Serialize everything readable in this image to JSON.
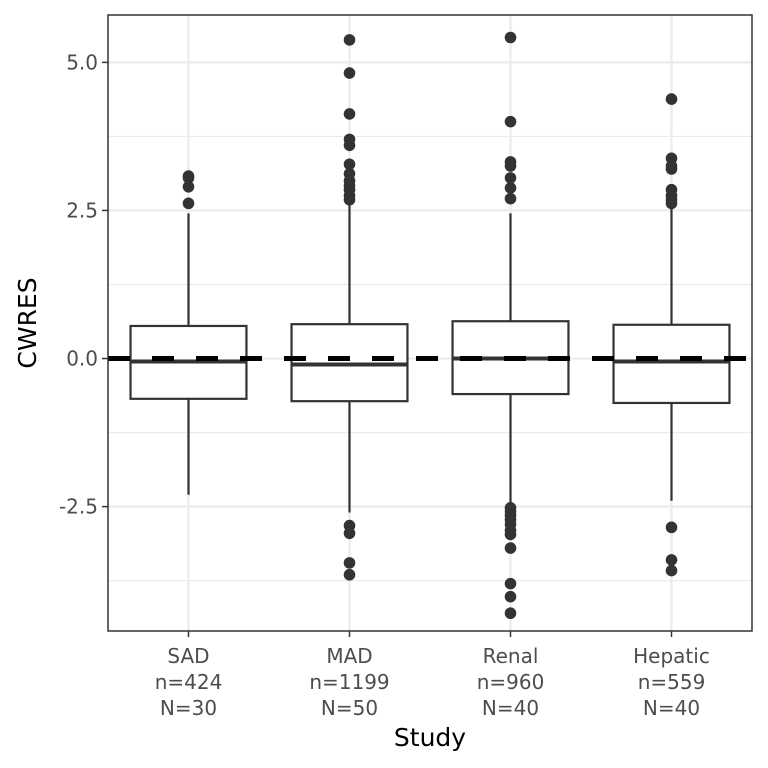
{
  "chart_data": {
    "type": "box",
    "title": "",
    "xlabel": "Study",
    "ylabel": "CWRES",
    "ylim": [
      -4.6,
      5.8
    ],
    "yticks": [
      -2.5,
      0.0,
      2.5,
      5.0
    ],
    "ytick_labels": [
      "-2.5",
      "0.0",
      "2.5",
      "5.0"
    ],
    "grid": true,
    "reference_line": {
      "y": 0,
      "style": "dashed"
    },
    "categories": [
      {
        "name": "SAD",
        "n_label": "n=424",
        "N_label": "N=30",
        "q1": -0.68,
        "median": -0.05,
        "q3": 0.55,
        "whisker_low": -2.3,
        "whisker_high": 2.45,
        "outliers": [
          3.08,
          3.05,
          2.9,
          2.62
        ]
      },
      {
        "name": "MAD",
        "n_label": "n=1199",
        "N_label": "N=50",
        "q1": -0.72,
        "median": -0.1,
        "q3": 0.58,
        "whisker_low": -2.6,
        "whisker_high": 2.6,
        "outliers": [
          5.38,
          4.82,
          4.13,
          3.7,
          3.6,
          3.28,
          3.12,
          3.0,
          2.92,
          2.85,
          2.75,
          2.68,
          -2.82,
          -2.95,
          -3.45,
          -3.65
        ]
      },
      {
        "name": "Renal",
        "n_label": "n=960",
        "N_label": "N=40",
        "q1": -0.6,
        "median": 0.0,
        "q3": 0.63,
        "whisker_low": -2.5,
        "whisker_high": 2.45,
        "outliers": [
          5.42,
          4.0,
          3.32,
          3.25,
          3.05,
          2.88,
          2.7,
          -2.52,
          -2.58,
          -2.65,
          -2.72,
          -2.8,
          -2.9,
          -2.97,
          -3.2,
          -3.8,
          -4.02,
          -4.3
        ]
      },
      {
        "name": "Hepatic",
        "n_label": "n=559",
        "N_label": "N=40",
        "q1": -0.75,
        "median": -0.05,
        "q3": 0.57,
        "whisker_low": -2.4,
        "whisker_high": 2.55,
        "outliers": [
          4.38,
          3.38,
          3.25,
          3.2,
          2.85,
          2.75,
          2.68,
          2.62,
          -2.85,
          -3.4,
          -3.58
        ]
      }
    ]
  }
}
